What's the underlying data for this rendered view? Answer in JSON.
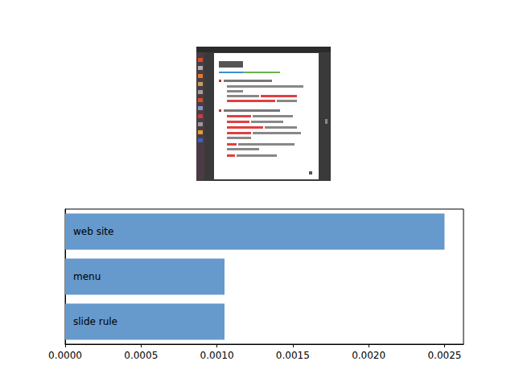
{
  "chart_data": {
    "type": "bar",
    "orientation": "horizontal",
    "categories": [
      "web site",
      "menu",
      "slide rule"
    ],
    "values": [
      0.0025,
      0.00105,
      0.00105
    ],
    "color": "#6699cc",
    "xlim": [
      0,
      0.002625
    ],
    "xticks": [
      {
        "value": 0,
        "label": "0.0000"
      },
      {
        "value": 0.0005,
        "label": "0.0005"
      },
      {
        "value": 0.001,
        "label": "0.0010"
      },
      {
        "value": 0.0015,
        "label": "0.0015"
      },
      {
        "value": 0.002,
        "label": "0.0020"
      },
      {
        "value": 0.0025,
        "label": "0.0025"
      }
    ],
    "tick_labels": "x",
    "grid": false
  }
}
